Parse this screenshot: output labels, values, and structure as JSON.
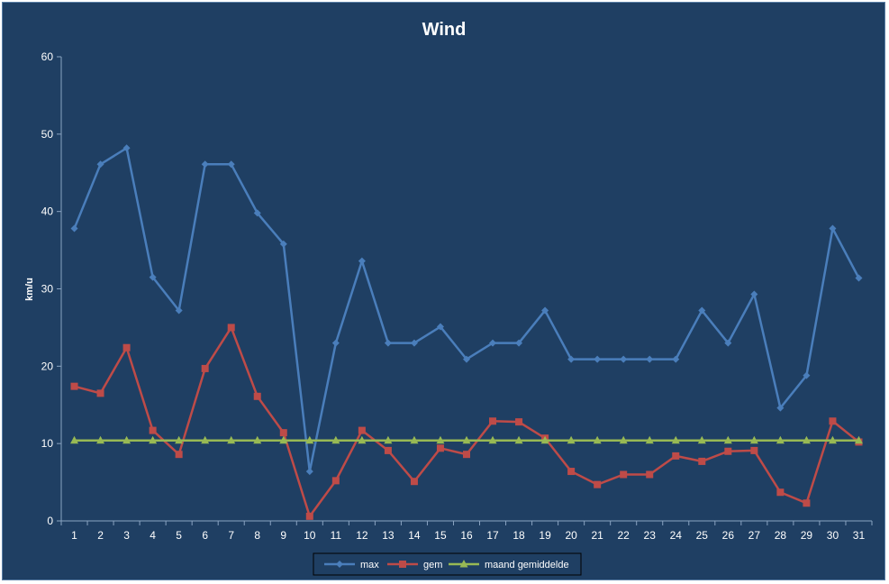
{
  "chart_data": {
    "type": "line",
    "title": "Wind",
    "xlabel": "",
    "ylabel": "km/u",
    "ylim": [
      0,
      60
    ],
    "yticks": [
      0,
      10,
      20,
      30,
      40,
      50,
      60
    ],
    "categories": [
      "1",
      "2",
      "3",
      "4",
      "5",
      "6",
      "7",
      "8",
      "9",
      "10",
      "11",
      "12",
      "13",
      "14",
      "15",
      "16",
      "17",
      "18",
      "19",
      "20",
      "21",
      "22",
      "23",
      "24",
      "25",
      "26",
      "27",
      "28",
      "29",
      "30",
      "31"
    ],
    "series": [
      {
        "name": "max",
        "color": "#4a7ebb",
        "marker": "diamond",
        "values": [
          37.8,
          46.1,
          48.2,
          31.5,
          27.2,
          46.1,
          46.1,
          39.8,
          35.8,
          6.4,
          23.0,
          33.6,
          23.0,
          23.0,
          25.1,
          20.9,
          23.0,
          23.0,
          27.2,
          20.9,
          20.9,
          20.9,
          20.9,
          20.9,
          27.2,
          23.0,
          29.3,
          14.6,
          18.8,
          37.8,
          31.4
        ]
      },
      {
        "name": "gem",
        "color": "#be4b48",
        "marker": "square",
        "values": [
          17.4,
          16.5,
          22.4,
          11.7,
          8.6,
          19.7,
          25.0,
          16.1,
          11.4,
          0.6,
          5.2,
          11.7,
          9.1,
          5.1,
          9.4,
          8.6,
          12.9,
          12.8,
          10.7,
          6.4,
          4.7,
          6.0,
          6.0,
          8.4,
          7.7,
          9.0,
          9.1,
          3.7,
          2.3,
          12.9,
          10.2
        ]
      },
      {
        "name": "maand gemiddelde",
        "color": "#98b954",
        "marker": "triangle",
        "values": [
          10.4,
          10.4,
          10.4,
          10.4,
          10.4,
          10.4,
          10.4,
          10.4,
          10.4,
          10.4,
          10.4,
          10.4,
          10.4,
          10.4,
          10.4,
          10.4,
          10.4,
          10.4,
          10.4,
          10.4,
          10.4,
          10.4,
          10.4,
          10.4,
          10.4,
          10.4,
          10.4,
          10.4,
          10.4,
          10.4,
          10.4
        ]
      }
    ],
    "grid": false,
    "legend_position": "bottom"
  },
  "colors": {
    "background": "#1f3f63",
    "axis": "#8aa4c2",
    "text": "#ffffff"
  }
}
